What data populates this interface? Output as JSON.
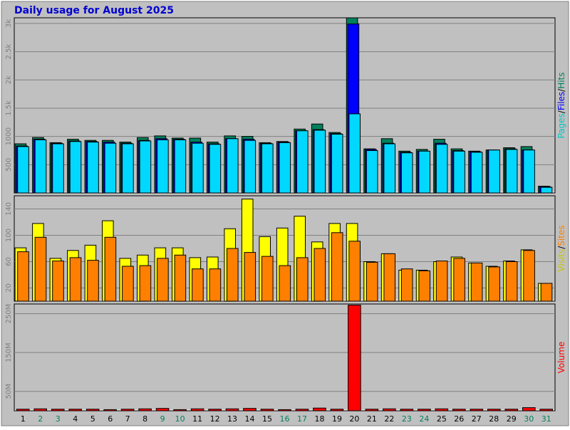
{
  "title": "Daily usage for August 2025",
  "colors": {
    "background": "#c0c0c0",
    "frame": "#ffffff",
    "title": "#0000d0",
    "hits": "#00805c",
    "files": "#0000ff",
    "pages": "#00d8ff",
    "visits": "#ffff00",
    "sites": "#ff8000",
    "volume": "#ff0000",
    "weekend_label": "#00805c"
  },
  "chart_data": [
    {
      "type": "bar",
      "id": "top",
      "legend": [
        {
          "text": "Pages",
          "color": "#00c8c8"
        },
        {
          "text": "/",
          "color": "#000000"
        },
        {
          "text": "Files",
          "color": "#0000ff"
        },
        {
          "text": "/",
          "color": "#000000"
        },
        {
          "text": "Hits",
          "color": "#00805c"
        }
      ],
      "yticks": [
        "500",
        "1000",
        "1.5k",
        "2k",
        "2.5k",
        "3k"
      ],
      "ytick_values": [
        500,
        1000,
        1500,
        2000,
        2500,
        3000
      ],
      "ylim": [
        0,
        3100
      ],
      "series": [
        {
          "name": "Hits",
          "color": "#00805c",
          "values": [
            870,
            980,
            890,
            950,
            930,
            930,
            900,
            980,
            1010,
            970,
            970,
            900,
            1010,
            1000,
            890,
            910,
            1130,
            1220,
            1070,
            3100,
            780,
            960,
            740,
            770,
            950,
            780,
            740,
            760,
            800,
            820,
            120
          ]
        },
        {
          "name": "Files",
          "color": "#0000ff",
          "values": [
            830,
            950,
            880,
            920,
            910,
            900,
            880,
            930,
            960,
            950,
            900,
            870,
            960,
            950,
            880,
            900,
            1100,
            1120,
            1050,
            2990,
            770,
            880,
            720,
            740,
            880,
            750,
            730,
            760,
            780,
            760,
            110
          ]
        },
        {
          "name": "Pages",
          "color": "#00d8ff",
          "values": [
            820,
            940,
            870,
            910,
            900,
            880,
            870,
            920,
            940,
            940,
            880,
            860,
            960,
            930,
            870,
            890,
            1100,
            1110,
            1040,
            1400,
            750,
            870,
            710,
            740,
            860,
            740,
            720,
            760,
            770,
            760,
            100
          ]
        }
      ]
    },
    {
      "type": "bar",
      "id": "middle",
      "legend": [
        {
          "text": "Visits",
          "color": "#c8c800"
        },
        {
          "text": "/",
          "color": "#000000"
        },
        {
          "text": "Sites",
          "color": "#ff8000"
        }
      ],
      "yticks": [
        "20",
        "60",
        "100",
        "140"
      ],
      "ytick_values": [
        20,
        60,
        100,
        140
      ],
      "ylim": [
        0,
        160
      ],
      "series": [
        {
          "name": "Visits",
          "color": "#ffff00",
          "values": [
            81,
            118,
            65,
            77,
            85,
            122,
            65,
            70,
            81,
            81,
            66,
            67,
            110,
            155,
            98,
            111,
            129,
            90,
            118,
            118,
            60,
            72,
            47,
            47,
            60,
            67,
            58,
            53,
            61,
            78,
            27
          ]
        },
        {
          "name": "Sites",
          "color": "#ff8000",
          "values": [
            75,
            97,
            61,
            66,
            62,
            97,
            53,
            54,
            65,
            70,
            49,
            49,
            80,
            74,
            68,
            54,
            66,
            80,
            104,
            91,
            59,
            72,
            49,
            46,
            61,
            65,
            58,
            52,
            60,
            77,
            27
          ]
        }
      ]
    },
    {
      "type": "bar",
      "id": "bottom",
      "legend": [
        {
          "text": "Volume",
          "color": "#ff0000"
        }
      ],
      "yticks": [
        "50M",
        "150M",
        "250M"
      ],
      "ytick_values": [
        50,
        150,
        250
      ],
      "ylim": [
        0,
        275
      ],
      "series": [
        {
          "name": "Volume",
          "color": "#ff0000",
          "values": [
            4,
            5,
            4,
            4,
            4,
            3,
            4,
            5,
            6,
            3,
            5,
            4,
            5,
            6,
            4,
            3,
            4,
            7,
            4,
            272,
            4,
            5,
            4,
            4,
            5,
            4,
            4,
            4,
            4,
            8,
            4
          ]
        }
      ]
    }
  ],
  "x_labels": [
    "1",
    "2",
    "3",
    "4",
    "5",
    "6",
    "7",
    "8",
    "9",
    "10",
    "11",
    "12",
    "13",
    "14",
    "15",
    "16",
    "17",
    "18",
    "19",
    "20",
    "21",
    "22",
    "23",
    "24",
    "25",
    "26",
    "27",
    "28",
    "29",
    "30",
    "31"
  ],
  "weekend_days": [
    "2",
    "3",
    "9",
    "10",
    "16",
    "17",
    "23",
    "24",
    "30",
    "31"
  ]
}
